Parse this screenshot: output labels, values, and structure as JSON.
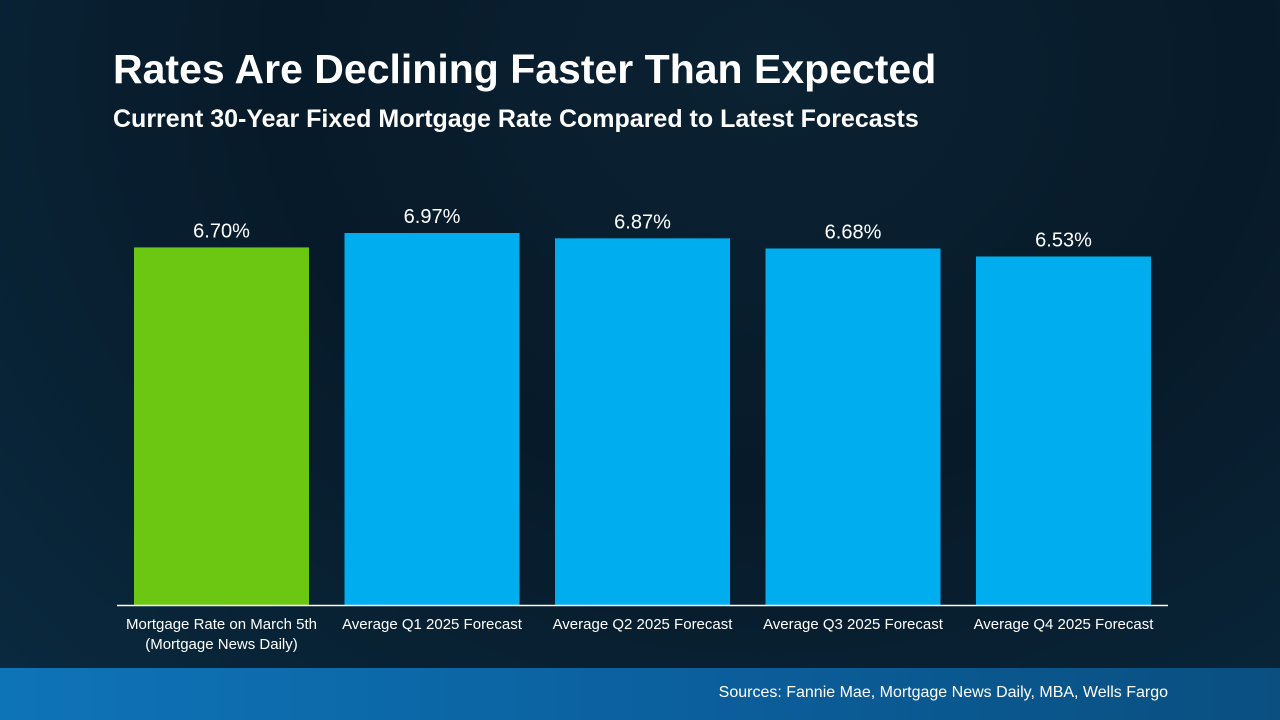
{
  "chart_data": {
    "type": "bar",
    "title": "Rates Are Declining Faster Than Expected",
    "subtitle": "Current 30-Year Fixed Mortgage Rate Compared to Latest Forecasts",
    "categories": [
      [
        "Mortgage Rate on March 5th",
        "(Mortgage News Daily)"
      ],
      [
        "Average Q1 2025 Forecast"
      ],
      [
        "Average Q2 2025 Forecast"
      ],
      [
        "Average Q3 2025 Forecast"
      ],
      [
        "Average Q4 2025 Forecast"
      ]
    ],
    "values": [
      6.7,
      6.97,
      6.87,
      6.68,
      6.53
    ],
    "value_labels": [
      "6.70%",
      "6.97%",
      "6.87%",
      "6.68%",
      "6.53%"
    ],
    "ylim": [
      0,
      6.97
    ],
    "xlabel": "",
    "ylabel": "",
    "grid": false,
    "colors": {
      "current": "#6cc712",
      "forecast": "#00adef",
      "axis": "#ffffff",
      "label": "#ffffff"
    }
  },
  "footer": {
    "sources": "Sources: Fannie Mae, Mortgage News Daily, MBA, Wells Fargo"
  }
}
